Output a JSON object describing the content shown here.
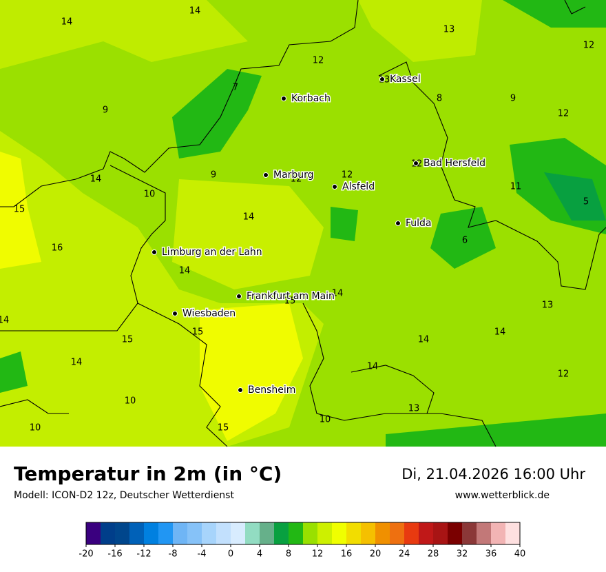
{
  "header": {
    "title": "Temperatur in 2m (in °C)",
    "model": "Modell: ICON-D2 12z, Deutscher Wetterdienst",
    "date": "Di, 21.04.2026 16:00 Uhr",
    "website": "www.wetterblick.de"
  },
  "map": {
    "cities": [
      "Kassel",
      "Korbach",
      "Marburg",
      "Alsfeld",
      "Bad Hersfeld",
      "Fulda",
      "Limburg an der Lahn",
      "Frankfurt am Main",
      "Wiesbaden",
      "Bensheim"
    ],
    "temperature_labels": [
      "14",
      "14",
      "13",
      "12",
      "12",
      "13",
      "7",
      "8",
      "9",
      "9",
      "12",
      "9",
      "12",
      "12",
      "12",
      "14",
      "11",
      "10",
      "15",
      "5",
      "14",
      "6",
      "16",
      "14",
      "15",
      "14",
      "13",
      "14",
      "15",
      "15",
      "14",
      "14",
      "14",
      "14",
      "12",
      "10",
      "13",
      "10",
      "10",
      "15"
    ]
  },
  "colorbar": {
    "ticks": [
      -20,
      -16,
      -12,
      -8,
      -4,
      0,
      4,
      8,
      12,
      16,
      20,
      24,
      28,
      32,
      36,
      40
    ],
    "colors": [
      "#3a007f",
      "#003e8a",
      "#00468c",
      "#0061b8",
      "#0080e0",
      "#2196f3",
      "#6fb5f5",
      "#86c2f8",
      "#a7d4fb",
      "#c2e0fd",
      "#d8ecfe",
      "#92dcc2",
      "#66b08a",
      "#08a040",
      "#22b814",
      "#99e000",
      "#cdf000",
      "#f0ff00",
      "#f2dd00",
      "#f5c000",
      "#f09000",
      "#ee7010",
      "#e83a10",
      "#c01818",
      "#a81414",
      "#7a0000",
      "#8b3838",
      "#c27878",
      "#f2b4b4",
      "#fee0e0"
    ]
  }
}
